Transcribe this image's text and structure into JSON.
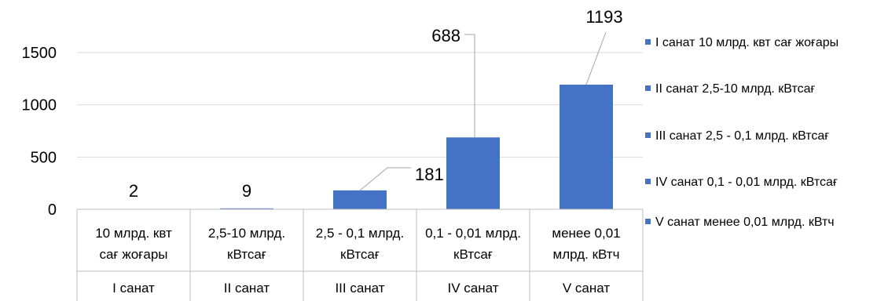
{
  "chart_data": {
    "type": "bar",
    "title": "",
    "xlabel": "",
    "ylabel": "",
    "ylim": [
      0,
      1800
    ],
    "yticks": [
      0,
      500,
      1000,
      1500
    ],
    "grid": true,
    "legend_position": "right",
    "bar_color": "#4472C4",
    "categories": [
      {
        "line1": "10 млрд. квт",
        "line2": "сағ жоғары",
        "group": "I санат"
      },
      {
        "line1": "2,5-10 млрд.",
        "line2": "кВтсағ",
        "group": "II санат"
      },
      {
        "line1": "2,5 - 0,1 млрд.",
        "line2": "кВтсағ",
        "group": "III санат"
      },
      {
        "line1": "0,1 - 0,01 млрд.",
        "line2": "кВтсағ",
        "group": "IV санат"
      },
      {
        "line1": "менее 0,01",
        "line2": "млрд. кВтч",
        "group": "V санат"
      }
    ],
    "values": [
      2,
      9,
      181,
      688,
      1193
    ],
    "data_labels": [
      "2",
      "9",
      "181",
      "688",
      "1193"
    ],
    "legend": [
      "I санат 10 млрд. квт сағ жоғары",
      "II санат 2,5-10 млрд. кВтсағ",
      "III санат 2,5 - 0,1 млрд. кВтсағ",
      "IV санат 0,1 - 0,01 млрд. кВтсағ",
      "V санат менее 0,01 млрд. кВтч"
    ]
  }
}
